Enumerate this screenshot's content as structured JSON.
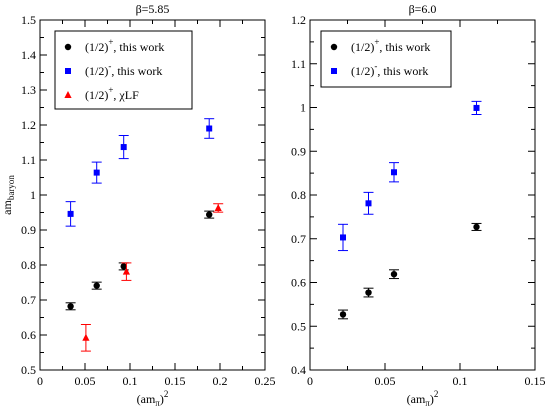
{
  "chart_data": [
    {
      "type": "scatter",
      "title": "β=5.85",
      "xlabel": {
        "base": "(am",
        "sub": "π",
        "close": ")",
        "sup": "2"
      },
      "ylabel": {
        "base": "am",
        "sub": "baryon"
      },
      "xlim": [
        0,
        0.25
      ],
      "ylim": [
        0.5,
        1.5
      ],
      "xticks": [
        0,
        0.05,
        0.1,
        0.15,
        0.2,
        0.25
      ],
      "xtick_labels": [
        "0",
        "0.05",
        "0.1",
        "0.15",
        "0.2",
        "0.25"
      ],
      "yticks": [
        0.5,
        0.6,
        0.7,
        0.8,
        0.9,
        1.0,
        1.1,
        1.2,
        1.3,
        1.4,
        1.5
      ],
      "ytick_labels": [
        "0.5",
        "0.6",
        "0.7",
        "0.8",
        "0.9",
        "1",
        "1.1",
        "1.2",
        "1.3",
        "1.4",
        "1.5"
      ],
      "legend_position": "top-left",
      "series": [
        {
          "legend": {
            "pre": "(1/2)",
            "sup": "+",
            "post": ", this work"
          },
          "color": "#000000",
          "marker": "circle",
          "points": [
            {
              "x": 0.034,
              "y": 0.682,
              "err": 0.01
            },
            {
              "x": 0.063,
              "y": 0.741,
              "err": 0.01
            },
            {
              "x": 0.093,
              "y": 0.796,
              "err": 0.01
            },
            {
              "x": 0.188,
              "y": 0.944,
              "err": 0.01
            }
          ]
        },
        {
          "legend": {
            "pre": "(1/2)",
            "sup": "-",
            "post": ", this work"
          },
          "color": "#0000ff",
          "marker": "square",
          "points": [
            {
              "x": 0.034,
              "y": 0.946,
              "err": 0.035
            },
            {
              "x": 0.063,
              "y": 1.064,
              "err": 0.03
            },
            {
              "x": 0.093,
              "y": 1.137,
              "err": 0.033
            },
            {
              "x": 0.188,
              "y": 1.19,
              "err": 0.028
            }
          ]
        },
        {
          "legend": {
            "pre": "(1/2)",
            "sup": "+",
            "post": ", χLF"
          },
          "color": "#ff0000",
          "marker": "triangle",
          "points": [
            {
              "x": 0.051,
              "y": 0.592,
              "err": 0.038
            },
            {
              "x": 0.096,
              "y": 0.781,
              "err": 0.025
            },
            {
              "x": 0.198,
              "y": 0.963,
              "err": 0.012
            }
          ]
        }
      ]
    },
    {
      "type": "scatter",
      "title": "β=6.0",
      "xlabel": {
        "base": "(am",
        "sub": "π",
        "close": ")",
        "sup": "2"
      },
      "ylabel": null,
      "xlim": [
        0,
        0.15
      ],
      "ylim": [
        0.4,
        1.2
      ],
      "xticks": [
        0,
        0.05,
        0.1,
        0.15
      ],
      "xtick_labels": [
        "0",
        "0.05",
        "0.1",
        "0.15"
      ],
      "yticks": [
        0.4,
        0.5,
        0.6,
        0.7,
        0.8,
        0.9,
        1.0,
        1.1,
        1.2
      ],
      "ytick_labels": [
        "0.4",
        "0.5",
        "0.6",
        "0.7",
        "0.8",
        "0.9",
        "1",
        "1.1",
        "1.2"
      ],
      "legend_position": "top-left",
      "series": [
        {
          "legend": {
            "pre": "(1/2)",
            "sup": "+",
            "post": ", this work"
          },
          "color": "#000000",
          "marker": "circle",
          "points": [
            {
              "x": 0.022,
              "y": 0.527,
              "err": 0.01
            },
            {
              "x": 0.039,
              "y": 0.577,
              "err": 0.01
            },
            {
              "x": 0.056,
              "y": 0.619,
              "err": 0.01
            },
            {
              "x": 0.111,
              "y": 0.727,
              "err": 0.008
            }
          ]
        },
        {
          "legend": {
            "pre": "(1/2)",
            "sup": "-",
            "post": ", this work"
          },
          "color": "#0000ff",
          "marker": "square",
          "points": [
            {
              "x": 0.022,
              "y": 0.703,
              "err": 0.03
            },
            {
              "x": 0.039,
              "y": 0.781,
              "err": 0.025
            },
            {
              "x": 0.056,
              "y": 0.852,
              "err": 0.022
            },
            {
              "x": 0.111,
              "y": 0.999,
              "err": 0.015
            }
          ]
        }
      ]
    }
  ]
}
